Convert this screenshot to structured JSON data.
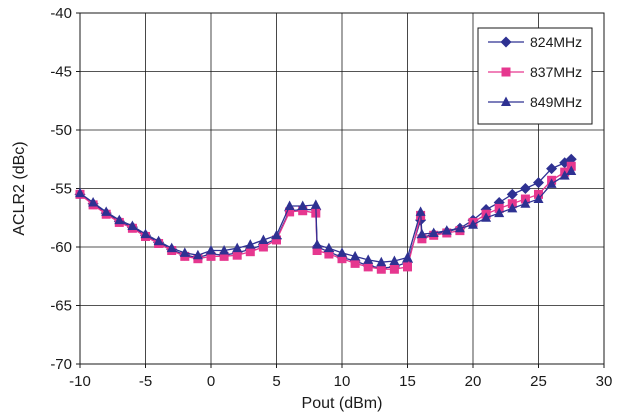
{
  "chart_data": {
    "type": "line",
    "xlabel": "Pout (dBm)",
    "ylabel": "ACLR2 (dBc)",
    "xlim": [
      -10,
      30
    ],
    "ylim": [
      -70,
      -40
    ],
    "xticks": [
      -10,
      -5,
      0,
      5,
      10,
      15,
      20,
      25,
      30
    ],
    "yticks": [
      -70,
      -65,
      -60,
      -55,
      -50,
      -45,
      -40
    ],
    "grid": true,
    "legend_position": "top-right",
    "series": [
      {
        "name": "824MHz",
        "color": "#2e3192",
        "marker": "diamond",
        "points": [
          [
            -10,
            -55.5
          ],
          [
            -9,
            -56.3
          ],
          [
            -8,
            -57.1
          ],
          [
            -7,
            -57.8
          ],
          [
            -6,
            -58.3
          ],
          [
            -5,
            -59.0
          ],
          [
            -4,
            -59.6
          ],
          [
            -3,
            -60.2
          ],
          [
            -2,
            -60.7
          ],
          [
            -1,
            -60.9
          ],
          [
            0,
            -60.6
          ],
          [
            1,
            -60.7
          ],
          [
            2,
            -60.5
          ],
          [
            3,
            -60.2
          ],
          [
            4,
            -59.8
          ],
          [
            5,
            -59.3
          ],
          [
            6,
            -56.9
          ],
          [
            7,
            -56.8
          ],
          [
            8,
            -56.8
          ],
          [
            8.1,
            -60.0
          ],
          [
            9,
            -60.4
          ],
          [
            10,
            -60.9
          ],
          [
            11,
            -61.2
          ],
          [
            12,
            -61.6
          ],
          [
            13,
            -61.8
          ],
          [
            14,
            -61.7
          ],
          [
            15,
            -61.3
          ],
          [
            16,
            -57.7
          ],
          [
            16.1,
            -59.2
          ],
          [
            17,
            -58.9
          ],
          [
            18,
            -58.7
          ],
          [
            19,
            -58.4
          ],
          [
            20,
            -57.7
          ],
          [
            21,
            -56.8
          ],
          [
            22,
            -56.2
          ],
          [
            23,
            -55.5
          ],
          [
            24,
            -55.0
          ],
          [
            25,
            -54.5
          ],
          [
            26,
            -53.3
          ],
          [
            27,
            -52.8
          ],
          [
            27.5,
            -52.5
          ]
        ]
      },
      {
        "name": "837MHz",
        "color": "#e6378f",
        "marker": "square",
        "points": [
          [
            -10,
            -55.5
          ],
          [
            -9,
            -56.4
          ],
          [
            -8,
            -57.2
          ],
          [
            -7,
            -57.9
          ],
          [
            -6,
            -58.4
          ],
          [
            -5,
            -59.1
          ],
          [
            -4,
            -59.7
          ],
          [
            -3,
            -60.3
          ],
          [
            -2,
            -60.8
          ],
          [
            -1,
            -61.0
          ],
          [
            0,
            -60.8
          ],
          [
            1,
            -60.8
          ],
          [
            2,
            -60.7
          ],
          [
            3,
            -60.4
          ],
          [
            4,
            -60.0
          ],
          [
            5,
            -59.4
          ],
          [
            6,
            -57.0
          ],
          [
            7,
            -56.9
          ],
          [
            8,
            -57.1
          ],
          [
            8.1,
            -60.3
          ],
          [
            9,
            -60.6
          ],
          [
            10,
            -61.0
          ],
          [
            11,
            -61.4
          ],
          [
            12,
            -61.7
          ],
          [
            13,
            -61.9
          ],
          [
            14,
            -61.9
          ],
          [
            15,
            -61.7
          ],
          [
            16,
            -57.3
          ],
          [
            16.1,
            -59.3
          ],
          [
            17,
            -59.0
          ],
          [
            18,
            -58.8
          ],
          [
            19,
            -58.6
          ],
          [
            20,
            -57.9
          ],
          [
            21,
            -57.2
          ],
          [
            22,
            -56.7
          ],
          [
            23,
            -56.3
          ],
          [
            24,
            -55.9
          ],
          [
            25,
            -55.5
          ],
          [
            26,
            -54.3
          ],
          [
            27,
            -53.6
          ],
          [
            27.5,
            -53.1
          ]
        ]
      },
      {
        "name": "849MHz",
        "color": "#2e3192",
        "marker": "triangle",
        "points": [
          [
            -10,
            -55.4
          ],
          [
            -9,
            -56.2
          ],
          [
            -8,
            -57.0
          ],
          [
            -7,
            -57.7
          ],
          [
            -6,
            -58.2
          ],
          [
            -5,
            -58.9
          ],
          [
            -4,
            -59.5
          ],
          [
            -3,
            -60.1
          ],
          [
            -2,
            -60.5
          ],
          [
            -1,
            -60.7
          ],
          [
            0,
            -60.3
          ],
          [
            1,
            -60.3
          ],
          [
            2,
            -60.1
          ],
          [
            3,
            -59.8
          ],
          [
            4,
            -59.4
          ],
          [
            5,
            -59.0
          ],
          [
            6,
            -56.5
          ],
          [
            7,
            -56.5
          ],
          [
            8,
            -56.4
          ],
          [
            8.1,
            -59.8
          ],
          [
            9,
            -60.1
          ],
          [
            10,
            -60.5
          ],
          [
            11,
            -60.8
          ],
          [
            12,
            -61.1
          ],
          [
            13,
            -61.3
          ],
          [
            14,
            -61.2
          ],
          [
            15,
            -60.9
          ],
          [
            16,
            -57.0
          ],
          [
            16.1,
            -58.9
          ],
          [
            17,
            -58.8
          ],
          [
            18,
            -58.6
          ],
          [
            19,
            -58.4
          ],
          [
            20,
            -58.1
          ],
          [
            21,
            -57.5
          ],
          [
            22,
            -57.1
          ],
          [
            23,
            -56.7
          ],
          [
            24,
            -56.3
          ],
          [
            25,
            -55.9
          ],
          [
            26,
            -54.6
          ],
          [
            27,
            -53.9
          ],
          [
            27.5,
            -53.5
          ]
        ]
      }
    ]
  }
}
